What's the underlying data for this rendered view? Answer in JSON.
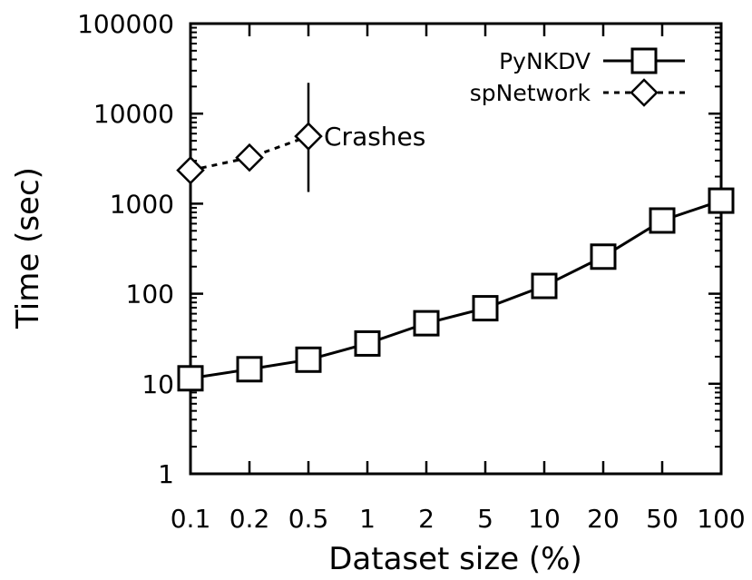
{
  "chart_data": {
    "type": "line",
    "title": "",
    "xlabel": "Dataset size (%)",
    "ylabel": "Time (sec)",
    "categories": [
      "0.1",
      "0.2",
      "0.5",
      "1",
      "2",
      "5",
      "10",
      "20",
      "50",
      "100"
    ],
    "y_scale": "log",
    "ylim": [
      1,
      100000
    ],
    "y_ticks": [
      "1",
      "10",
      "100",
      "1000",
      "10000",
      "100000"
    ],
    "grid": false,
    "legend_position": "top-right",
    "series": [
      {
        "name": "PyNKDV",
        "marker": "square",
        "line_style": "solid",
        "values": [
          11.5,
          14.5,
          18.5,
          28,
          47,
          69,
          122,
          258,
          650,
          1080
        ]
      },
      {
        "name": "spNetwork",
        "marker": "diamond",
        "line_style": "dashed",
        "values": [
          2350,
          3250,
          5600,
          null,
          null,
          null,
          null,
          null,
          null,
          null
        ],
        "error_bar": {
          "category": "0.5",
          "low": 1350,
          "high": 22000
        }
      }
    ],
    "annotations": [
      {
        "text": "Crashes",
        "category": "0.5",
        "value": 5600
      }
    ]
  }
}
